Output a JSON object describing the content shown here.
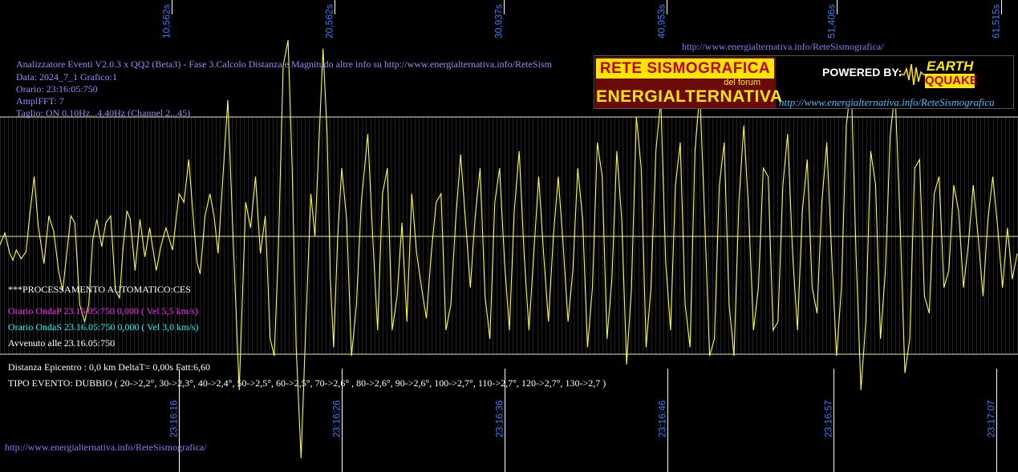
{
  "header_info": {
    "line1": "Analizzatore Eventi V2.0.3 x QQ2 (Beta3) - Fase 3.Calcolo Distanza e Magnitudo altre info su http://www.energialternativa.info/ReteSism",
    "line2": "Data: 2024_7_1 Grafico:1",
    "line3": "Orario: 23:16:05:750",
    "line4": "AmplFFT: 7",
    "line5": "Taglio: ON 0,10Hz...4,40Hz      (Channel 2...45)"
  },
  "top_url": "http://www.energialternativa.info/ReteSismografica/",
  "bottom_url": "http://www.energialternativa.info/ReteSismografica/",
  "processing": {
    "title": "***PROCESSAMENTO AUTOMATICO:CES",
    "onda_p": "Orario OndaP 23.16.05:750  0,000 ( Vel 5,5 km/s)",
    "onda_s": "Orario OndaS 23.16.05:750  0,000 ( Vel 3,0 km/s)",
    "avvenuto": "Avvenuto alle 23.16.05:750",
    "distanza": "Distanza Epicentro : 0,0 km DeltaT= 0,00s  Fatt:6,60",
    "tipo_evento": "TIPO EVENTO: DUBBIO ( 20->2,2°, 30->2,3°, 40->2,4°, 50->2,5°, 60->2,5°, 70->2,6° , 80->2,6°, 90->2,6°, 100->2,7°, 110->2,7°, 120->2,7°, 130->2,7 )"
  },
  "logo": {
    "rete": "RETE SISMOGRAFICA",
    "forum": "del forum",
    "energ": "ENERGIALTERNATIVA",
    "powered": "POWERED BY:",
    "earth": "EARTH",
    "quake": "QQUAKE",
    "url": "http://www.energialternativa.info/ReteSismografica"
  },
  "colors": {
    "trace": "#ffff33",
    "grid": "#6a6a6a",
    "ref_line": "#e8e8b0",
    "axis_label": "#2f7fff",
    "text_blue": "#8f8fff",
    "onda_p": "#ff22ff",
    "onda_s": "#00ffff"
  },
  "chart_data": {
    "type": "line",
    "xlim": [
      0,
      62.5
    ],
    "ylim": [
      -1,
      1
    ],
    "top_ticks": [
      {
        "t": 10.562,
        "label": "10,562s"
      },
      {
        "t": 20.562,
        "label": "20,562s"
      },
      {
        "t": 30.937,
        "label": "30,937s"
      },
      {
        "t": 40.953,
        "label": "40,953s"
      },
      {
        "t": 51.406,
        "label": "51,406s"
      },
      {
        "t": 61.515,
        "label": "61,515s"
      }
    ],
    "bottom_ticks": [
      {
        "t": 11.0,
        "label": "23:16:16"
      },
      {
        "t": 21.0,
        "label": "23:16:26"
      },
      {
        "t": 31.0,
        "label": "23:16:36"
      },
      {
        "t": 41.0,
        "label": "23:16:46"
      },
      {
        "t": 51.2,
        "label": "23:16:57"
      },
      {
        "t": 61.2,
        "label": "23:17:07"
      }
    ],
    "series": [
      {
        "values": [
          [
            0,
            -0.05
          ],
          [
            0.3,
            0.02
          ],
          [
            0.6,
            -0.1
          ],
          [
            0.8,
            -0.14
          ],
          [
            1.0,
            -0.08
          ],
          [
            1.3,
            -0.13
          ],
          [
            1.6,
            -0.09
          ],
          [
            1.8,
            0.1
          ],
          [
            2.1,
            0.35
          ],
          [
            2.35,
            0.06
          ],
          [
            2.7,
            -0.16
          ],
          [
            3.0,
            0.12
          ],
          [
            3.3,
            0.03
          ],
          [
            3.6,
            -0.2
          ],
          [
            3.85,
            -0.32
          ],
          [
            4.1,
            -0.1
          ],
          [
            4.35,
            0.12
          ],
          [
            4.6,
            0.08
          ],
          [
            4.9,
            -0.4
          ],
          [
            5.2,
            -0.5
          ],
          [
            5.45,
            -0.4
          ],
          [
            5.7,
            -0.02
          ],
          [
            5.95,
            0.1
          ],
          [
            6.25,
            -0.06
          ],
          [
            6.5,
            0.08
          ],
          [
            6.8,
            0.12
          ],
          [
            7.1,
            -0.32
          ],
          [
            7.35,
            -0.36
          ],
          [
            7.55,
            -0.08
          ],
          [
            7.8,
            0.15
          ],
          [
            8.0,
            0.1
          ],
          [
            8.3,
            -0.2
          ],
          [
            8.6,
            0.1
          ],
          [
            8.9,
            -0.12
          ],
          [
            9.2,
            0.05
          ],
          [
            9.6,
            -0.2
          ],
          [
            9.9,
            -0.05
          ],
          [
            10.2,
            0.05
          ],
          [
            10.6,
            -0.08
          ],
          [
            11.0,
            0.25
          ],
          [
            11.3,
            0.2
          ],
          [
            11.6,
            0.45
          ],
          [
            11.9,
            0.08
          ],
          [
            12.1,
            -0.15
          ],
          [
            12.3,
            -0.22
          ],
          [
            12.6,
            0.12
          ],
          [
            12.9,
            0.25
          ],
          [
            13.15,
            0.12
          ],
          [
            13.4,
            -0.1
          ],
          [
            13.7,
            0.35
          ],
          [
            14.0,
            0.8
          ],
          [
            14.3,
            0.05
          ],
          [
            14.7,
            -0.9
          ],
          [
            15.1,
            0.2
          ],
          [
            15.4,
            0.05
          ],
          [
            15.7,
            0.35
          ],
          [
            16.0,
            -0.1
          ],
          [
            16.3,
            0.12
          ],
          [
            16.6,
            -0.6
          ],
          [
            16.85,
            -0.7
          ],
          [
            17.1,
            -0.1
          ],
          [
            17.4,
            1.0
          ],
          [
            17.7,
            1.15
          ],
          [
            17.95,
            0.4
          ],
          [
            18.2,
            -0.65
          ],
          [
            18.5,
            -1.3
          ],
          [
            18.8,
            -0.5
          ],
          [
            19.1,
            0.25
          ],
          [
            19.35,
            0.0
          ],
          [
            19.6,
            0.55
          ],
          [
            19.85,
            1.1
          ],
          [
            20.1,
            0.6
          ],
          [
            20.3,
            -0.25
          ],
          [
            20.5,
            -0.65
          ],
          [
            20.75,
            0.0
          ],
          [
            21.0,
            0.4
          ],
          [
            21.3,
            0.1
          ],
          [
            21.6,
            -0.7
          ],
          [
            21.9,
            -0.4
          ],
          [
            22.2,
            0.2
          ],
          [
            22.6,
            0.6
          ],
          [
            22.9,
            0.0
          ],
          [
            23.2,
            -0.55
          ],
          [
            23.5,
            0.25
          ],
          [
            23.8,
            0.4
          ],
          [
            24.1,
            -0.55
          ],
          [
            24.4,
            -0.35
          ],
          [
            24.7,
            0.08
          ],
          [
            25.0,
            -0.5
          ],
          [
            25.3,
            0.25
          ],
          [
            25.6,
            -0.1
          ],
          [
            25.9,
            -0.3
          ],
          [
            26.2,
            -0.48
          ],
          [
            26.5,
            -0.1
          ],
          [
            26.8,
            0.2
          ],
          [
            27.1,
            0.25
          ],
          [
            27.4,
            -0.55
          ],
          [
            27.7,
            -0.4
          ],
          [
            28.0,
            0.1
          ],
          [
            28.3,
            0.48
          ],
          [
            28.6,
            0.1
          ],
          [
            28.9,
            -0.3
          ],
          [
            29.2,
            0.12
          ],
          [
            29.5,
            0.4
          ],
          [
            29.8,
            -0.35
          ],
          [
            30.1,
            -0.6
          ],
          [
            30.4,
            0.2
          ],
          [
            30.7,
            0.4
          ],
          [
            31.0,
            -0.15
          ],
          [
            31.3,
            -0.55
          ],
          [
            31.6,
            0.15
          ],
          [
            31.9,
            0.5
          ],
          [
            32.2,
            -0.1
          ],
          [
            32.5,
            -0.55
          ],
          [
            32.8,
            -0.1
          ],
          [
            33.1,
            0.35
          ],
          [
            33.4,
            -0.1
          ],
          [
            33.7,
            -0.5
          ],
          [
            34.0,
            0.0
          ],
          [
            34.3,
            0.35
          ],
          [
            34.6,
            -0.05
          ],
          [
            34.9,
            -0.5
          ],
          [
            35.2,
            -0.2
          ],
          [
            35.5,
            0.4
          ],
          [
            35.8,
            0.1
          ],
          [
            36.1,
            -0.65
          ],
          [
            36.4,
            -0.3
          ],
          [
            36.7,
            0.55
          ],
          [
            37.0,
            0.35
          ],
          [
            37.3,
            -0.6
          ],
          [
            37.6,
            -0.25
          ],
          [
            37.9,
            0.5
          ],
          [
            38.2,
            0.1
          ],
          [
            38.5,
            -0.75
          ],
          [
            38.8,
            -0.3
          ],
          [
            39.1,
            0.7
          ],
          [
            39.4,
            0.4
          ],
          [
            39.7,
            -0.65
          ],
          [
            40.0,
            -0.3
          ],
          [
            40.3,
            0.5
          ],
          [
            40.6,
            0.8
          ],
          [
            40.9,
            -0.15
          ],
          [
            41.2,
            -0.55
          ],
          [
            41.5,
            0.3
          ],
          [
            41.8,
            0.55
          ],
          [
            42.1,
            -0.4
          ],
          [
            42.4,
            -0.65
          ],
          [
            42.7,
            0.5
          ],
          [
            43.0,
            0.85
          ],
          [
            43.3,
            0.1
          ],
          [
            43.6,
            -0.7
          ],
          [
            43.9,
            -0.6
          ],
          [
            44.2,
            0.3
          ],
          [
            44.5,
            0.55
          ],
          [
            44.8,
            -0.4
          ],
          [
            45.1,
            -0.7
          ],
          [
            45.4,
            0.2
          ],
          [
            45.7,
            0.65
          ],
          [
            46.0,
            0.15
          ],
          [
            46.3,
            -0.55
          ],
          [
            46.6,
            -0.3
          ],
          [
            46.9,
            0.4
          ],
          [
            47.2,
            0.35
          ],
          [
            47.5,
            -0.55
          ],
          [
            47.8,
            -0.5
          ],
          [
            48.1,
            0.3
          ],
          [
            48.4,
            0.6
          ],
          [
            48.7,
            -0.1
          ],
          [
            49.0,
            -0.55
          ],
          [
            49.3,
            0.15
          ],
          [
            49.6,
            0.45
          ],
          [
            49.9,
            -0.3
          ],
          [
            50.2,
            -0.45
          ],
          [
            50.5,
            0.2
          ],
          [
            50.8,
            0.55
          ],
          [
            51.1,
            -0.1
          ],
          [
            51.4,
            -0.7
          ],
          [
            51.7,
            -0.3
          ],
          [
            52.0,
            0.65
          ],
          [
            52.3,
            0.9
          ],
          [
            52.6,
            -0.1
          ],
          [
            52.9,
            -0.9
          ],
          [
            53.2,
            -0.5
          ],
          [
            53.5,
            0.5
          ],
          [
            53.8,
            0.3
          ],
          [
            54.1,
            -0.6
          ],
          [
            54.4,
            -0.2
          ],
          [
            54.7,
            0.6
          ],
          [
            55.0,
            0.85
          ],
          [
            55.3,
            0.1
          ],
          [
            55.6,
            -0.8
          ],
          [
            55.9,
            -0.6
          ],
          [
            56.2,
            0.4
          ],
          [
            56.5,
            0.45
          ],
          [
            56.8,
            -0.35
          ],
          [
            57.1,
            -0.45
          ],
          [
            57.4,
            0.25
          ],
          [
            57.7,
            0.35
          ],
          [
            58.0,
            -0.3
          ],
          [
            58.3,
            -0.2
          ],
          [
            58.6,
            0.3
          ],
          [
            58.9,
            0.15
          ],
          [
            59.2,
            -0.3
          ],
          [
            59.5,
            -0.05
          ],
          [
            59.8,
            0.3
          ],
          [
            60.1,
            0.0
          ],
          [
            60.4,
            -0.35
          ],
          [
            60.7,
            0.1
          ],
          [
            61.0,
            0.35
          ],
          [
            61.3,
            0.05
          ],
          [
            61.6,
            -0.3
          ],
          [
            61.9,
            0.05
          ],
          [
            62.2,
            -0.25
          ],
          [
            62.5,
            -0.1
          ]
        ]
      }
    ]
  }
}
